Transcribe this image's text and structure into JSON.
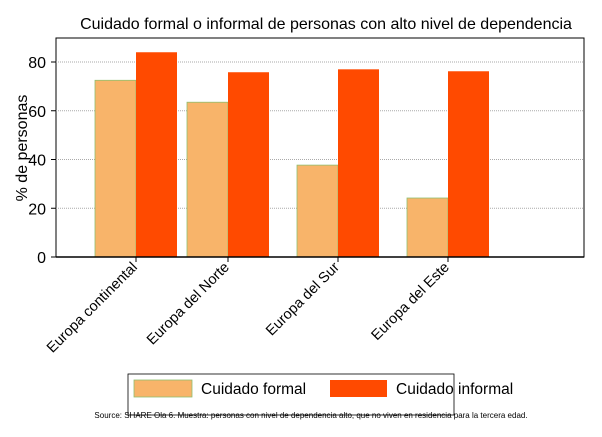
{
  "chart_data": {
    "type": "bar",
    "title": "Cuidado formal o informal de personas con alto nivel de dependencia",
    "xlabel": "",
    "ylabel": "% de personas",
    "ylim": [
      0,
      90
    ],
    "yticks": [
      0,
      20,
      40,
      60,
      80
    ],
    "grid": true,
    "legend_placement": "bottom",
    "categories": [
      "Europa continental",
      "Europa del Norte",
      "Europa del Sur",
      "Europa del Este"
    ],
    "series": [
      {
        "name": "Cuidado formal",
        "color": "#F8B46A",
        "values": [
          72.5,
          63.5,
          37.7,
          24.2
        ]
      },
      {
        "name": "Cuidado informal",
        "color": "#FF4A00",
        "values": [
          84,
          75.8,
          77,
          76.2
        ]
      }
    ],
    "note": "Source: SHARE Ola 6. Muestra: personas con nivel de dependencia alto, que no viven en residencia para la tercera edad."
  }
}
